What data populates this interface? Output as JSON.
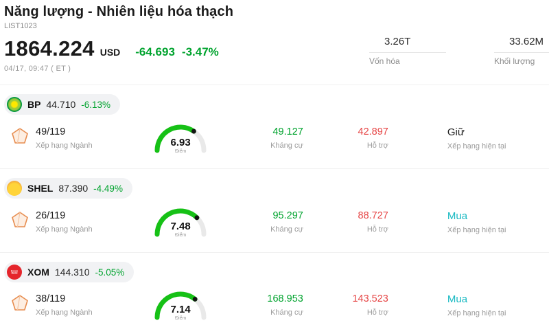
{
  "header": {
    "title": "Năng lượng - Nhiên liệu hóa thạch",
    "list_id": "LIST1023",
    "price": "1864.224",
    "currency": "USD",
    "change": "-64.693",
    "change_pct": "-3.47%",
    "datetime": "04/17, 09:47  ( ET )",
    "market_cap": {
      "value": "3.26T",
      "label": "Vốn hóa"
    },
    "volume": {
      "value": "33.62M",
      "label": "Khối lượng"
    }
  },
  "labels": {
    "industry_rank": "Xếp hạng Ngành",
    "score": "Điểm",
    "resistance": "Kháng cự",
    "support": "Hỗ trợ",
    "current_rating": "Xếp hạng hiện tại"
  },
  "colors": {
    "green": "#00a32e",
    "red": "#e64545",
    "teal": "#17b9c2",
    "gauge_green": "#16c116",
    "gauge_track": "#e9e9e9",
    "gauge_dot": "#141414"
  },
  "stocks": [
    {
      "ticker": "BP",
      "price": "44.710",
      "change_pct": "-6.13%",
      "rank": "49/119",
      "score": 6.93,
      "score_display": "6.93",
      "resistance": "49.127",
      "support": "42.897",
      "rating": "Giữ",
      "rating_color": "#1f1f1f",
      "logo": "bp"
    },
    {
      "ticker": "SHEL",
      "price": "87.390",
      "change_pct": "-4.49%",
      "rank": "26/119",
      "score": 7.48,
      "score_display": "7.48",
      "resistance": "95.297",
      "support": "88.727",
      "rating": "Mua",
      "rating_color": "#17b9c2",
      "logo": "shell"
    },
    {
      "ticker": "XOM",
      "price": "144.310",
      "change_pct": "-5.05%",
      "rank": "38/119",
      "score": 7.14,
      "score_display": "7.14",
      "resistance": "168.953",
      "support": "143.523",
      "rating": "Mua",
      "rating_color": "#17b9c2",
      "logo": "exxonmobil",
      "logo_text": "Exxon Mobil"
    }
  ]
}
